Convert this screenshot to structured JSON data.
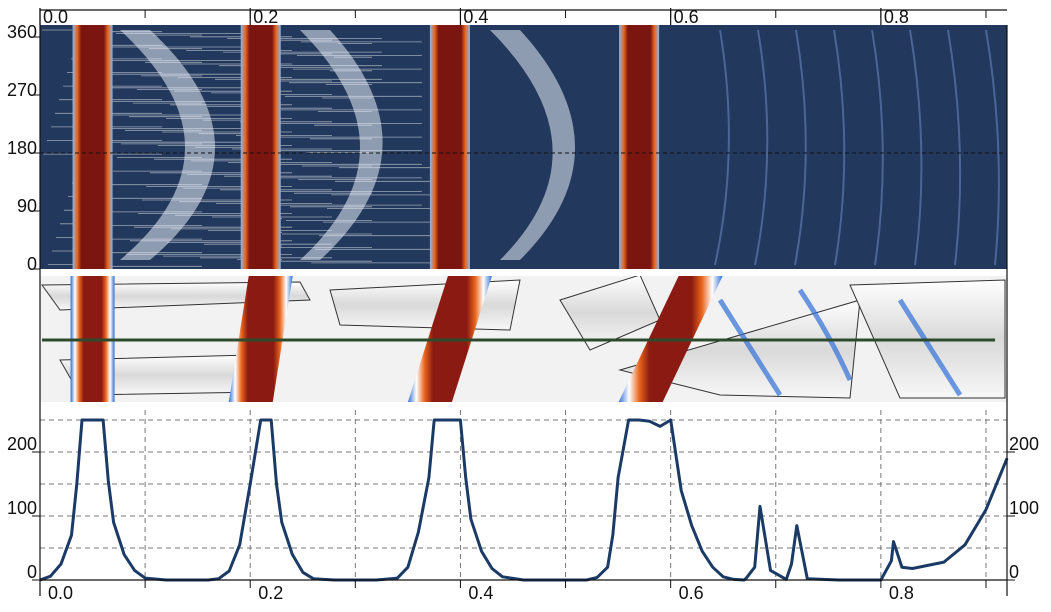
{
  "top_axis": {
    "ticks": [
      "0.0",
      "0.2",
      "0.4",
      "0.6",
      "0.8"
    ]
  },
  "bottom_axis": {
    "ticks": [
      "0.0",
      "0.2",
      "0.4",
      "0.6",
      "0.8"
    ]
  },
  "heatmap_panel": {
    "y_ticks": [
      "360",
      "270",
      "180",
      "90",
      "0"
    ],
    "y_tick_values": [
      360,
      270,
      180,
      90,
      0
    ],
    "x_range": [
      0,
      0.92
    ],
    "y_range": [
      0,
      360
    ],
    "background_color": "#22385c",
    "band_color": "#7a1510",
    "band_edge_color": "#e8641c",
    "bands_x": [
      0.05,
      0.21,
      0.39,
      0.57
    ]
  },
  "surface_panel": {
    "background_color": "#f2f2f2",
    "band_color": "#8a1a12",
    "accent_color": "#2f6fd6",
    "line_color": "#2d4a2d",
    "bands_x": [
      0.05,
      0.21,
      0.39,
      0.6
    ]
  },
  "chart_data": {
    "type": "line",
    "x_range": [
      0,
      0.92
    ],
    "ylim": [
      0,
      250
    ],
    "y_ticks_left": [
      "200",
      "100",
      "0"
    ],
    "y_ticks_right": [
      "200",
      "100",
      "0"
    ],
    "y_tick_values": [
      200,
      100,
      0
    ],
    "line_color": "#1b3a66",
    "grid": "dashed",
    "series": [
      {
        "x": [
          0.0,
          0.01,
          0.02,
          0.03,
          0.035,
          0.04,
          0.06,
          0.065,
          0.07,
          0.08,
          0.09,
          0.1,
          0.12,
          0.14,
          0.16,
          0.17,
          0.18,
          0.19,
          0.2,
          0.21,
          0.22,
          0.225,
          0.23,
          0.24,
          0.25,
          0.26,
          0.28,
          0.3,
          0.32,
          0.34,
          0.35,
          0.36,
          0.37,
          0.375,
          0.38,
          0.4,
          0.405,
          0.41,
          0.42,
          0.43,
          0.44,
          0.46,
          0.48,
          0.5,
          0.52,
          0.53,
          0.54,
          0.545,
          0.55,
          0.56,
          0.57,
          0.58,
          0.59,
          0.6,
          0.61,
          0.62,
          0.63,
          0.64,
          0.65,
          0.66,
          0.67,
          0.672,
          0.68,
          0.685,
          0.695,
          0.71,
          0.715,
          0.72,
          0.73,
          0.76,
          0.77,
          0.8,
          0.81,
          0.812,
          0.82,
          0.83,
          0.86,
          0.88,
          0.9,
          0.92
        ],
        "y": [
          0,
          6,
          25,
          70,
          150,
          250,
          250,
          155,
          90,
          40,
          15,
          3,
          0,
          0,
          0,
          2,
          14,
          55,
          150,
          250,
          250,
          150,
          90,
          40,
          12,
          2,
          0,
          0,
          0,
          3,
          20,
          75,
          160,
          250,
          250,
          250,
          160,
          95,
          45,
          18,
          5,
          0,
          0,
          0,
          0,
          4,
          20,
          70,
          160,
          250,
          250,
          248,
          240,
          250,
          140,
          85,
          45,
          20,
          5,
          1,
          0,
          3,
          20,
          115,
          15,
          1,
          25,
          85,
          2,
          0,
          0,
          0,
          30,
          60,
          20,
          18,
          28,
          55,
          110,
          190
        ]
      }
    ]
  }
}
